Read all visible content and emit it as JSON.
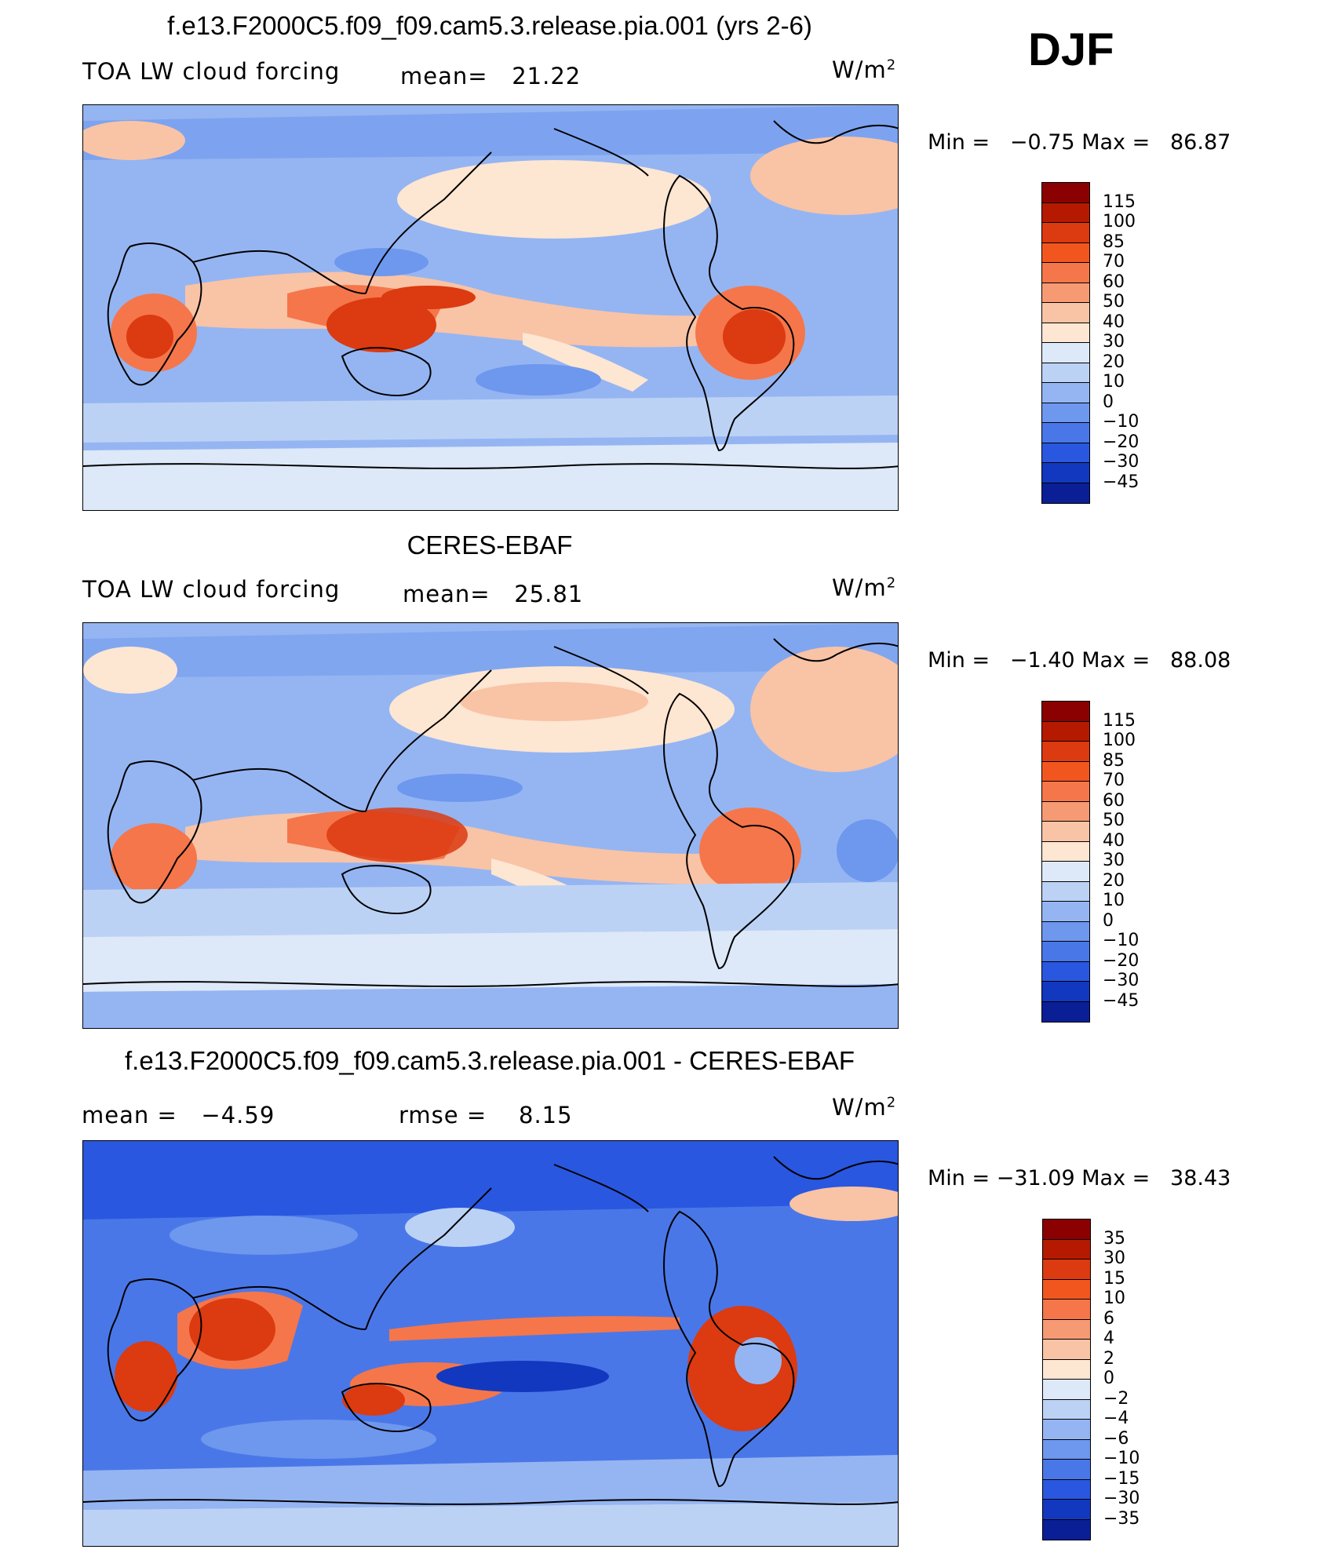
{
  "season": "DJF",
  "units_label": "W/m",
  "units_sup": "2",
  "panels": [
    {
      "title": "f.e13.F2000C5.f09_f09.cam5.3.release.pia.001 (yrs 2-6)",
      "left_label": "TOA LW cloud forcing",
      "mid_label": "mean=",
      "mid_value": "21.22",
      "min_label": "Min  =",
      "min_value": "−0.75",
      "max_label": "Max  =",
      "max_value": "86.87",
      "colorbar_labels": [
        "115",
        "100",
        "85",
        "70",
        "60",
        "50",
        "40",
        "30",
        "20",
        "10",
        "0",
        "−10",
        "−20",
        "−30",
        "−45"
      ]
    },
    {
      "title": "CERES-EBAF",
      "left_label": "TOA LW cloud forcing",
      "mid_label": "mean=",
      "mid_value": "25.81",
      "min_label": "Min  =",
      "min_value": "−1.40",
      "max_label": "Max  =",
      "max_value": "88.08",
      "colorbar_labels": [
        "115",
        "100",
        "85",
        "70",
        "60",
        "50",
        "40",
        "30",
        "20",
        "10",
        "0",
        "−10",
        "−20",
        "−30",
        "−45"
      ]
    },
    {
      "title": "f.e13.F2000C5.f09_f09.cam5.3.release.pia.001 - CERES-EBAF",
      "left_label": "mean  =",
      "left_value": "−4.59",
      "mid_label": "rmse  =",
      "mid_value": "8.15",
      "min_label": "Min  =",
      "min_value": "−31.09",
      "max_label": "Max  =",
      "max_value": "38.43",
      "colorbar_labels": [
        "35",
        "30",
        "15",
        "10",
        "6",
        "4",
        "2",
        "0",
        "−2",
        "−4",
        "−6",
        "−10",
        "−15",
        "−30",
        "−35"
      ]
    }
  ],
  "colors": {
    "palette": [
      "#8b0000",
      "#b51a00",
      "#dc3a10",
      "#f2561f",
      "#f5764a",
      "#f69a74",
      "#f9c3a6",
      "#fde6d2",
      "#dde8f8",
      "#bcd2f5",
      "#95b5f2",
      "#6e97ee",
      "#4a77e8",
      "#2a57e0",
      "#1238c0",
      "#0a1f95",
      "#00106a"
    ]
  }
}
